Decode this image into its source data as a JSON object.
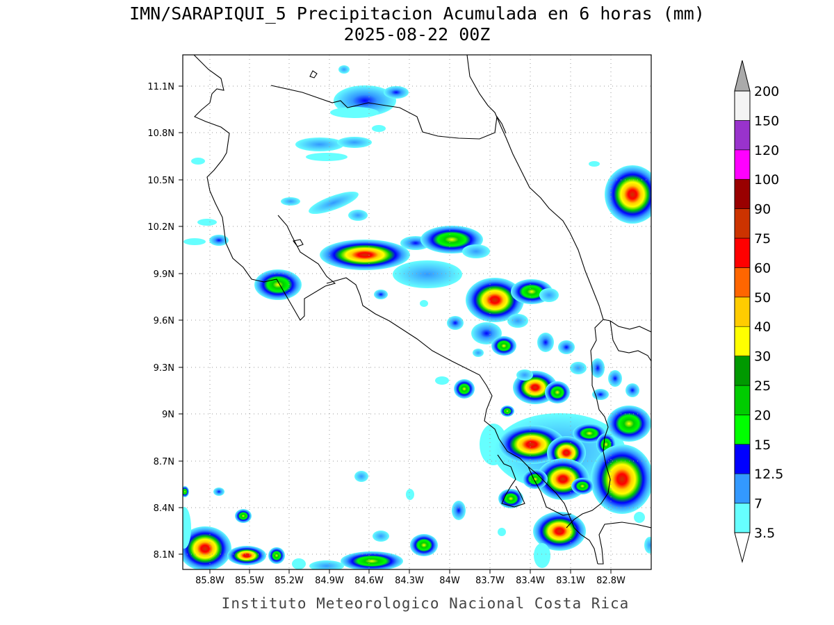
{
  "map": {
    "title_line1": "IMN/SARAPIQUI_5 Precipitacion Acumulada en 6 horas (mm)",
    "title_line2": "2025-08-22 00Z",
    "footer": "Instituto Meteorologico Nacional Costa Rica",
    "lon_ticks": [
      "85.8W",
      "85.5W",
      "85.2W",
      "84.9W",
      "84.6W",
      "84.3W",
      "84W",
      "83.7W",
      "83.4W",
      "83.1W",
      "82.8W"
    ],
    "lat_ticks": [
      "11.1N",
      "10.8N",
      "10.5N",
      "10.2N",
      "9.9N",
      "9.6N",
      "9.3N",
      "9N",
      "8.7N",
      "8.4N",
      "8.1N"
    ],
    "variable": "6-hour accumulated precipitation",
    "units": "mm"
  },
  "colorbar": {
    "levels": [
      "3.5",
      "7",
      "12.5",
      "15",
      "20",
      "25",
      "30",
      "40",
      "50",
      "60",
      "75",
      "90",
      "100",
      "120",
      "150",
      "200"
    ],
    "colors": [
      "#ffffff",
      "#66ffff",
      "#3399ff",
      "#0000ff",
      "#00ff00",
      "#00cc00",
      "#009900",
      "#ffff00",
      "#ffcc00",
      "#ff6600",
      "#ff0000",
      "#cc3300",
      "#990000",
      "#ff00ff",
      "#9933cc",
      "#f4f4f4",
      "#aaaaaa"
    ]
  }
}
